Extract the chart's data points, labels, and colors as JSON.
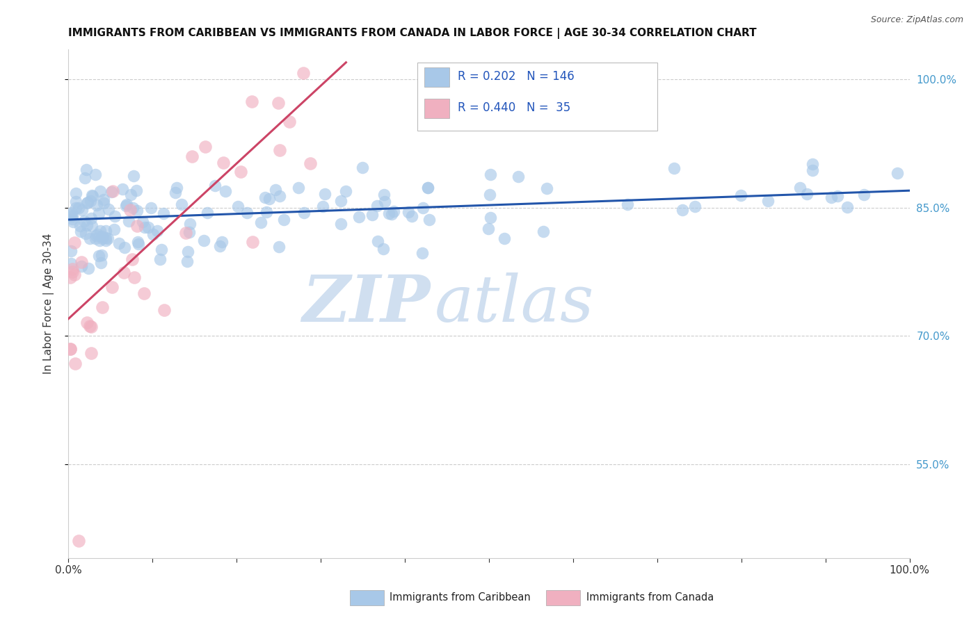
{
  "title": "IMMIGRANTS FROM CARIBBEAN VS IMMIGRANTS FROM CANADA IN LABOR FORCE | AGE 30-34 CORRELATION CHART",
  "source": "Source: ZipAtlas.com",
  "ylabel": "In Labor Force | Age 30-34",
  "legend_label1": "Immigrants from Caribbean",
  "legend_label2": "Immigrants from Canada",
  "R1": 0.202,
  "N1": 146,
  "R2": 0.44,
  "N2": 35,
  "xlim": [
    0.0,
    1.0
  ],
  "ylim": [
    0.44,
    1.035
  ],
  "yticks": [
    0.55,
    0.7,
    0.85,
    1.0
  ],
  "ytick_labels": [
    "55.0%",
    "70.0%",
    "85.0%",
    "100.0%"
  ],
  "color_blue": "#A8C8E8",
  "color_pink": "#F0B0C0",
  "color_line_blue": "#2255AA",
  "color_line_pink": "#CC4466",
  "watermark_color": "#D0DFF0",
  "background_color": "#FFFFFF",
  "grid_color": "#CCCCCC",
  "trend_blue_x0": 0.0,
  "trend_blue_x1": 1.0,
  "trend_blue_y0": 0.836,
  "trend_blue_y1": 0.87,
  "trend_pink_x0": 0.0,
  "trend_pink_x1": 0.33,
  "trend_pink_y0": 0.72,
  "trend_pink_y1": 1.02
}
